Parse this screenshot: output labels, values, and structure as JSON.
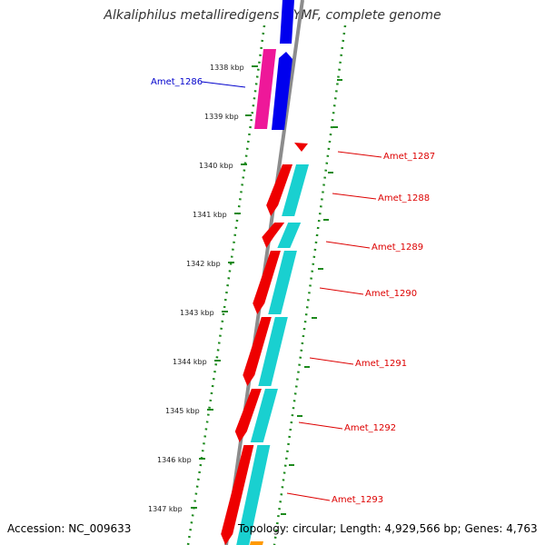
{
  "title": "Alkaliphilus metalliredigens QYMF, complete genome",
  "footer": {
    "accession": "Accession: NC_009633",
    "topology": "Topology: circular; Length: 4,929,566 bp; Genes: 4,763"
  },
  "colors": {
    "backbone": "#8c8c8c",
    "tick_dots": "#1d8a1d",
    "forward_cds": "#0000ee",
    "forward_gene": "#ee1899",
    "reverse_cds": "#ee0000",
    "reverse_gene": "#19d0d0",
    "forward_label": "#0000cc",
    "reverse_label": "#dd0000",
    "tail_gene": "#ff9900"
  },
  "ticks": [
    {
      "label": "1338 kbp"
    },
    {
      "label": "1339 kbp"
    },
    {
      "label": "1340 kbp"
    },
    {
      "label": "1341 kbp"
    },
    {
      "label": "1342 kbp"
    },
    {
      "label": "1343 kbp"
    },
    {
      "label": "1344 kbp"
    },
    {
      "label": "1345 kbp"
    },
    {
      "label": "1346 kbp"
    },
    {
      "label": "1347 kbp"
    }
  ],
  "genes": [
    {
      "name": "Amet_1286",
      "strand": "forward"
    },
    {
      "name": "Amet_1287",
      "strand": "reverse"
    },
    {
      "name": "Amet_1288",
      "strand": "reverse"
    },
    {
      "name": "Amet_1289",
      "strand": "reverse"
    },
    {
      "name": "Amet_1290",
      "strand": "reverse"
    },
    {
      "name": "Amet_1291",
      "strand": "reverse"
    },
    {
      "name": "Amet_1292",
      "strand": "reverse"
    },
    {
      "name": "Amet_1293",
      "strand": "reverse"
    }
  ]
}
